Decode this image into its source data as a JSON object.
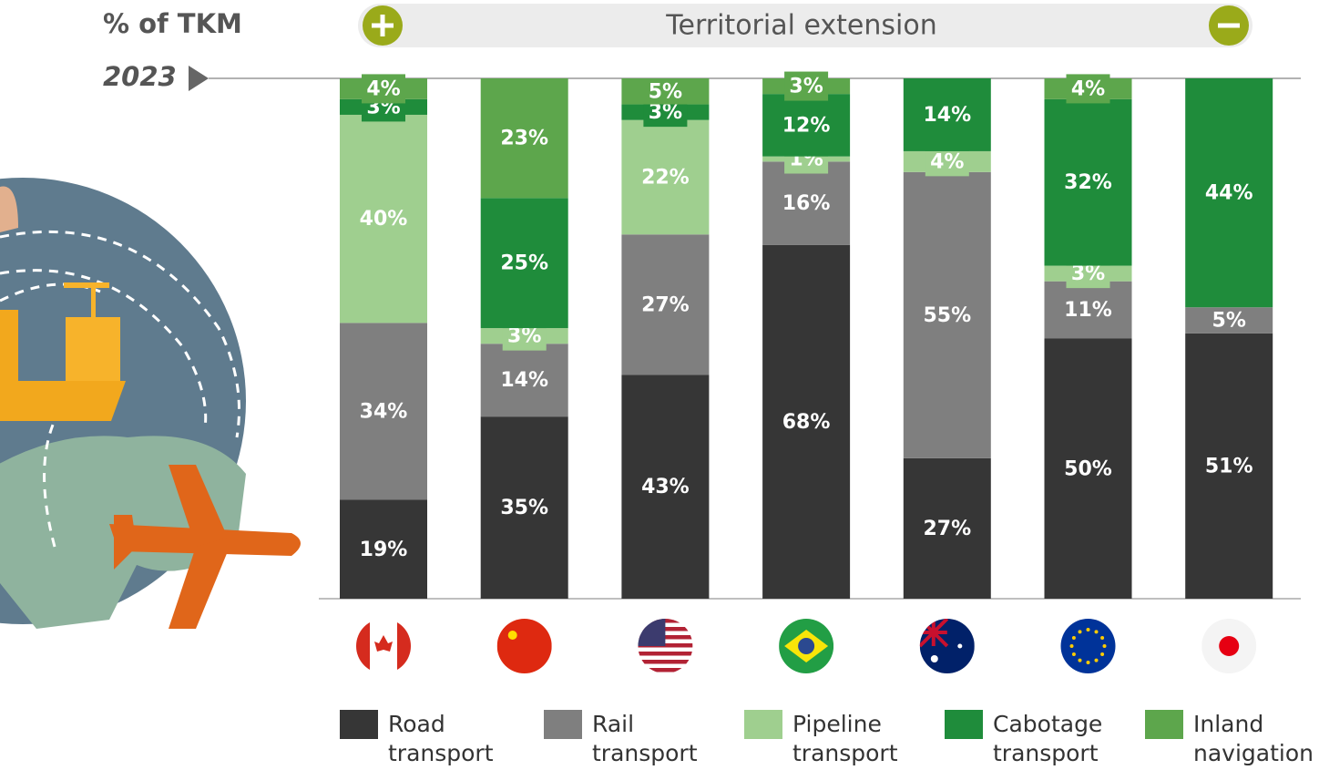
{
  "chart_data": {
    "type": "stacked-bar",
    "title": "% of TKM",
    "subtitle": "2023",
    "annotation": "Territorial extension",
    "categories": [
      null,
      null,
      null,
      null,
      null,
      null,
      null
    ],
    "ylim": [
      0,
      100
    ],
    "series": [
      {
        "name": "Road transport",
        "color": "#363636",
        "values": [
          19,
          35,
          43,
          68,
          27,
          50,
          51
        ],
        "value_labels": [
          "19%",
          "35%",
          "43%",
          "68%",
          "27%",
          "50%",
          "51%"
        ]
      },
      {
        "name": "Rail transport",
        "color": "#7f7f7f",
        "values": [
          34,
          14,
          27,
          16,
          55,
          11,
          5
        ],
        "value_labels": [
          "34%",
          "14%",
          "27%",
          "16%",
          "55%",
          "11%",
          "5%"
        ]
      },
      {
        "name": "Pipeline transport",
        "color": "#9fcf8f",
        "values": [
          40,
          3,
          22,
          1,
          4,
          3,
          null
        ],
        "value_labels": [
          "40%",
          "3%",
          "22%",
          "1%",
          "4%",
          "3%",
          null
        ]
      },
      {
        "name": "Cabotage transport",
        "color": "#1f8c3b",
        "values": [
          3,
          25,
          3,
          12,
          14,
          32,
          44
        ],
        "value_labels": [
          "3%",
          "25%",
          "3%",
          "12%",
          "14%",
          "32%",
          "44%"
        ]
      },
      {
        "name": "Inland navigation",
        "color": "#5da64c",
        "values": [
          4,
          23,
          5,
          3,
          null,
          4,
          null
        ],
        "value_labels": [
          "4%",
          "23%",
          "5%",
          "3%",
          null,
          "4%",
          null
        ]
      }
    ]
  }
}
